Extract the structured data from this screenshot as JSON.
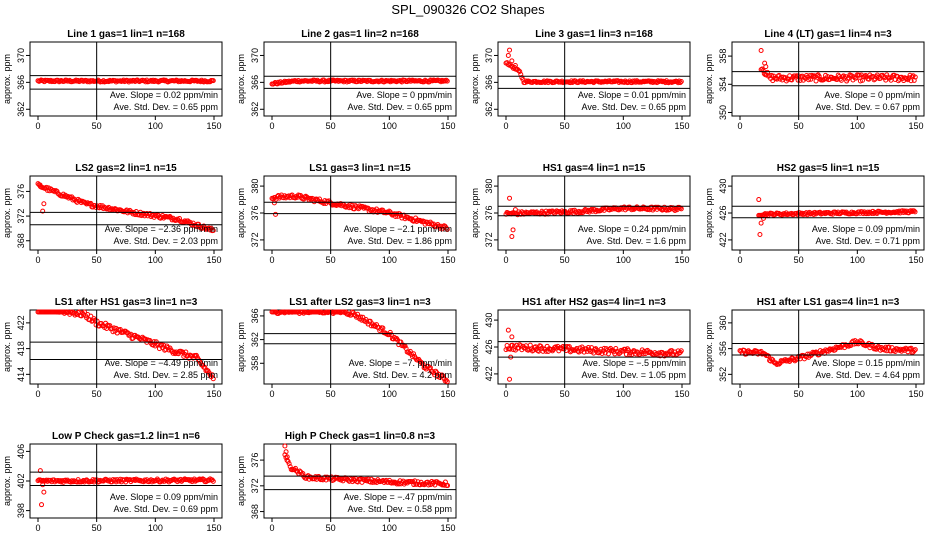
{
  "title": "SPL_090326  CO2 Shapes",
  "colors": {
    "points": "#ff0000",
    "axes": "#000000"
  },
  "chart_data": [
    {
      "type": "scatter",
      "title": "Line 1 gas=1 lin=1 n=168",
      "ylabel": "approx. ppm",
      "xlim": [
        0,
        150
      ],
      "ylim": [
        361,
        372
      ],
      "xticks": [
        0,
        50,
        100,
        150
      ],
      "yticks": [
        362,
        366,
        370
      ],
      "hlines": [
        367,
        365
      ],
      "vline": 50,
      "slope": "0.02",
      "stddev": "0.65",
      "shape": {
        "start": 366.2,
        "seg": [
          [
            150,
            366.2
          ]
        ],
        "noise": 0.15,
        "early": []
      }
    },
    {
      "type": "scatter",
      "title": "Line 2 gas=1 lin=2 n=168",
      "ylabel": "approx. ppm",
      "xlim": [
        0,
        150
      ],
      "ylim": [
        361,
        372
      ],
      "xticks": [
        0,
        50,
        100,
        150
      ],
      "yticks": [
        362,
        366,
        370
      ],
      "hlines": [
        366.9,
        365.1
      ],
      "vline": 50,
      "slope": "0",
      "stddev": "0.65",
      "shape": {
        "start": 365.8,
        "seg": [
          [
            20,
            366.2
          ],
          [
            150,
            366.2
          ]
        ],
        "noise": 0.15,
        "early": []
      }
    },
    {
      "type": "scatter",
      "title": "Line 3 gas=1 lin=3 n=168",
      "ylabel": "approx. ppm",
      "xlim": [
        0,
        150
      ],
      "ylim": [
        361,
        372
      ],
      "xticks": [
        0,
        50,
        100,
        150
      ],
      "yticks": [
        362,
        366,
        370
      ],
      "hlines": [
        366.9,
        365.1
      ],
      "vline": 50,
      "slope": "0.01",
      "stddev": "0.65",
      "shape": {
        "start": 369,
        "seg": [
          [
            12,
            367.5
          ],
          [
            15,
            366.1
          ],
          [
            150,
            366.1
          ]
        ],
        "noise": 0.15,
        "early": [
          [
            3,
            370.8
          ],
          [
            2,
            370
          ],
          [
            5,
            369.2
          ],
          [
            8,
            368.5
          ]
        ]
      }
    },
    {
      "type": "scatter",
      "title": "Line 4 (LT) gas=1 lin=4 n=3",
      "ylabel": "approx. ppm",
      "xlim": [
        0,
        150
      ],
      "ylim": [
        349.5,
        360
      ],
      "xticks": [
        0,
        50,
        100,
        150
      ],
      "yticks": [
        350,
        354,
        358
      ],
      "hlines": [
        355.8,
        353.8
      ],
      "vline": 50,
      "slope": "0",
      "stddev": "0.67",
      "shape": {
        "start": 356.5,
        "seg": [
          [
            25,
            354.9
          ],
          [
            150,
            354.9
          ]
        ],
        "noise": 0.45,
        "start_x": 18,
        "early": [
          [
            18,
            358.8
          ],
          [
            21,
            357
          ],
          [
            22,
            356.5
          ]
        ]
      }
    },
    {
      "type": "scatter",
      "title": "LS2 gas=2 lin=1 n=15",
      "ylabel": "approx. ppm",
      "xlim": [
        0,
        150
      ],
      "ylim": [
        366.5,
        378.5
      ],
      "xticks": [
        0,
        50,
        100,
        150
      ],
      "yticks": [
        368,
        372,
        376
      ],
      "hlines": [
        372.6,
        370.6
      ],
      "vline": 50,
      "slope": "−2.36",
      "stddev": "2.03",
      "shape": {
        "start": 377,
        "seg": [
          [
            40,
            374
          ],
          [
            80,
            372.6
          ],
          [
            120,
            371.5
          ],
          [
            150,
            369.6
          ]
        ],
        "noise": 0.3,
        "early": [
          [
            2,
            376.8
          ],
          [
            4,
            372.8
          ],
          [
            5,
            374
          ]
        ]
      }
    },
    {
      "type": "scatter",
      "title": "LS1 gas=3 lin=1 n=15",
      "ylabel": "approx. ppm",
      "xlim": [
        0,
        150
      ],
      "ylim": [
        370.5,
        381.5
      ],
      "xticks": [
        0,
        50,
        100,
        150
      ],
      "yticks": [
        372,
        376,
        380
      ],
      "hlines": [
        377.6,
        375.9
      ],
      "vline": 50,
      "slope": "−2.1",
      "stddev": "1.86",
      "shape": {
        "start": 378.3,
        "seg": [
          [
            20,
            378.5
          ],
          [
            50,
            377.5
          ],
          [
            100,
            376
          ],
          [
            150,
            373.7
          ]
        ],
        "noise": 0.3,
        "early": [
          [
            3,
            375.8
          ],
          [
            2,
            377.5
          ]
        ]
      }
    },
    {
      "type": "scatter",
      "title": "HS1 gas=4 lin=1 n=15",
      "ylabel": "approx. ppm",
      "xlim": [
        0,
        150
      ],
      "ylim": [
        370.5,
        381.5
      ],
      "xticks": [
        0,
        50,
        100,
        150
      ],
      "yticks": [
        372,
        376,
        380
      ],
      "hlines": [
        377,
        375.6
      ],
      "vline": 50,
      "slope": "0.24",
      "stddev": "1.6",
      "shape": {
        "start": 375.9,
        "seg": [
          [
            60,
            376.2
          ],
          [
            100,
            376.7
          ],
          [
            150,
            376.6
          ]
        ],
        "noise": 0.25,
        "early": [
          [
            3,
            378.2
          ],
          [
            5,
            372.5
          ],
          [
            6,
            373.5
          ],
          [
            8,
            376.5
          ]
        ]
      }
    },
    {
      "type": "scatter",
      "title": "HS2 gas=5 lin=1 n=15",
      "ylabel": "approx. ppm",
      "xlim": [
        0,
        150
      ],
      "ylim": [
        420.5,
        431.5
      ],
      "xticks": [
        0,
        50,
        100,
        150
      ],
      "yticks": [
        422,
        426,
        430
      ],
      "hlines": [
        427,
        425.3
      ],
      "vline": 50,
      "slope": "0.09",
      "stddev": "0.71",
      "shape": {
        "start": 425.8,
        "seg": [
          [
            150,
            426.2
          ]
        ],
        "noise": 0.18,
        "start_x": 16,
        "early": [
          [
            16,
            428
          ],
          [
            17,
            422.8
          ],
          [
            18,
            424.5
          ],
          [
            20,
            425.2
          ]
        ]
      }
    },
    {
      "type": "scatter",
      "title": "LS1 after HS1 gas=3 lin=1 n=3",
      "ylabel": "approx. ppm",
      "xlim": [
        0,
        150
      ],
      "ylim": [
        412.5,
        424
      ],
      "xticks": [
        0,
        50,
        100,
        150
      ],
      "yticks": [
        414,
        418,
        422
      ],
      "hlines": [
        419,
        416.3
      ],
      "vline": 50,
      "slope": "−4.49",
      "stddev": "2.85",
      "shape": {
        "start": 424.5,
        "seg": [
          [
            40,
            423.3
          ],
          [
            50,
            422
          ],
          [
            80,
            420
          ],
          [
            110,
            418
          ],
          [
            135,
            416.5
          ],
          [
            150,
            413.3
          ]
        ],
        "noise": 0.45,
        "early": []
      }
    },
    {
      "type": "scatter",
      "title": "LS1 after LS2 gas=3 lin=1 n=3",
      "ylabel": "approx. ppm",
      "xlim": [
        0,
        150
      ],
      "ylim": [
        354.5,
        367
      ],
      "xticks": [
        0,
        50,
        100,
        150
      ],
      "yticks": [
        358,
        362,
        366
      ],
      "hlines": [
        363,
        361.3
      ],
      "vline": 50,
      "slope": "−7.",
      "stddev": "4.2",
      "shape": {
        "start": 366.8,
        "seg": [
          [
            60,
            366.8
          ],
          [
            70,
            366.3
          ],
          [
            100,
            363
          ],
          [
            130,
            357.5
          ],
          [
            150,
            355
          ]
        ],
        "noise": 0.4,
        "early": []
      }
    },
    {
      "type": "scatter",
      "title": "HS1 after HS2 gas=4 lin=1 n=3",
      "ylabel": "approx. ppm",
      "xlim": [
        0,
        150
      ],
      "ylim": [
        420.5,
        431.5
      ],
      "xticks": [
        0,
        50,
        100,
        150
      ],
      "yticks": [
        422,
        426,
        430
      ],
      "hlines": [
        426.8,
        424.5
      ],
      "vline": 50,
      "slope": "−.5",
      "stddev": "1.05",
      "shape": {
        "start": 426,
        "seg": [
          [
            150,
            425
          ]
        ],
        "noise": 0.45,
        "early": [
          [
            2,
            428.5
          ],
          [
            3,
            421.2
          ],
          [
            4,
            424.5
          ],
          [
            5,
            427.5
          ]
        ]
      }
    },
    {
      "type": "scatter",
      "title": "HS1 after LS1 gas=4 lin=1 n=3",
      "ylabel": "approx. ppm",
      "xlim": [
        0,
        150
      ],
      "ylim": [
        350.5,
        362
      ],
      "xticks": [
        0,
        50,
        100,
        150
      ],
      "yticks": [
        352,
        356,
        360
      ],
      "hlines": [
        356.8,
        355
      ],
      "vline": 50,
      "slope": "0.15",
      "stddev": "4.64",
      "shape": {
        "start": 355.5,
        "seg": [
          [
            20,
            355.3
          ],
          [
            30,
            353.7
          ],
          [
            50,
            354.5
          ],
          [
            80,
            356
          ],
          [
            100,
            357
          ],
          [
            120,
            356
          ],
          [
            150,
            355.7
          ]
        ],
        "noise": 0.35,
        "early": []
      }
    },
    {
      "type": "scatter",
      "title": "Low P Check gas=1.2 lin=1 n=6",
      "ylabel": "approx. ppm",
      "xlim": [
        0,
        150
      ],
      "ylim": [
        397,
        407
      ],
      "xticks": [
        0,
        50,
        100,
        150
      ],
      "yticks": [
        398,
        402,
        406
      ],
      "hlines": [
        403.2,
        401.4
      ],
      "vline": 50,
      "slope": "0.09",
      "stddev": "0.69",
      "shape": {
        "start": 402,
        "seg": [
          [
            150,
            402.1
          ]
        ],
        "noise": 0.2,
        "early": [
          [
            2,
            403.4
          ],
          [
            3,
            398.8
          ],
          [
            4,
            401.5
          ],
          [
            5,
            400.5
          ]
        ]
      }
    },
    {
      "type": "scatter",
      "title": "High P Check gas=1 lin=0.8 n=3",
      "ylabel": "approx. ppm",
      "xlim": [
        0,
        150
      ],
      "ylim": [
        367,
        378.5
      ],
      "xticks": [
        0,
        50,
        100,
        150
      ],
      "yticks": [
        368,
        372,
        376
      ],
      "hlines": [
        373.5,
        371.4
      ],
      "vline": 50,
      "slope": "−.47",
      "stddev": "0.58",
      "shape": {
        "start": 377,
        "seg": [
          [
            15,
            375
          ],
          [
            30,
            373.3
          ],
          [
            100,
            372.6
          ],
          [
            150,
            372.3
          ]
        ],
        "noise": 0.3,
        "start_x": 11,
        "early": [
          [
            11,
            378.2
          ],
          [
            12,
            377.3
          ],
          [
            13,
            376.5
          ]
        ]
      }
    }
  ],
  "annotation_labels": {
    "slope_prefix": "Ave. Slope = ",
    "slope_unit": " ppm/min",
    "sd_prefix": "Ave. Std. Dev. = ",
    "sd_unit": " ppm"
  }
}
